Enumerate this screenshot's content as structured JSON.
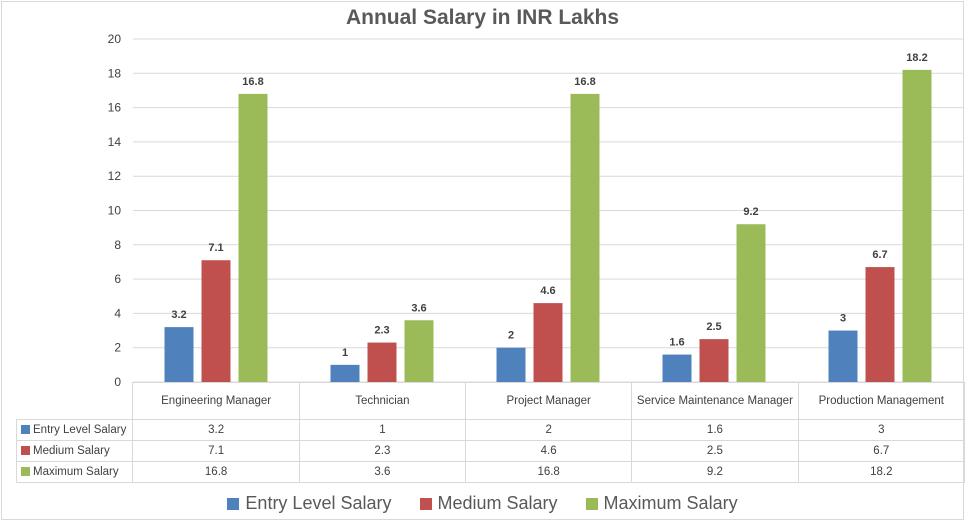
{
  "chart_data": {
    "type": "bar",
    "title": "Annual Salary in INR Lakhs",
    "xlabel": "",
    "ylabel": "",
    "ylim": [
      0,
      20
    ],
    "yticks": [
      0,
      2,
      4,
      6,
      8,
      10,
      12,
      14,
      16,
      18,
      20
    ],
    "grid": true,
    "legend_position": "bottom",
    "categories": [
      "Engineering Manager",
      "Technician",
      "Project Manager",
      "Service Maintenance Manager",
      "Production Management"
    ],
    "series": [
      {
        "name": "Entry Level Salary",
        "color": "#4f81bd",
        "values": [
          3.2,
          1,
          2,
          1.6,
          3
        ]
      },
      {
        "name": "Medium Salary",
        "color": "#c0504d",
        "values": [
          7.1,
          2.3,
          4.6,
          2.5,
          6.7
        ]
      },
      {
        "name": "Maximum Salary",
        "color": "#9bbb59",
        "values": [
          16.8,
          3.6,
          16.8,
          9.2,
          18.2
        ]
      }
    ],
    "data_table": true
  }
}
